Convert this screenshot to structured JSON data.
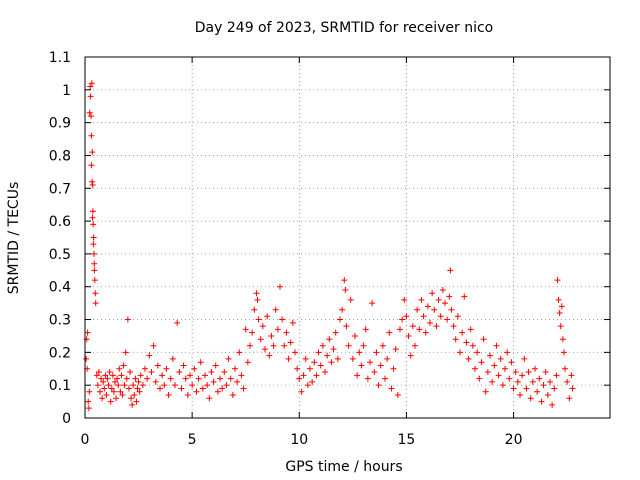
{
  "chart_data": {
    "type": "scatter",
    "title": "Day 249 of 2023, SRMTID for receiver nico",
    "xlabel": "GPS time / hours",
    "ylabel": "SRMTID / TECUs",
    "xlim": [
      0,
      24.5
    ],
    "ylim": [
      0,
      1.1
    ],
    "xticks": [
      0,
      5,
      10,
      15,
      20
    ],
    "xtick_labels": [
      "0",
      "5",
      "10",
      "15",
      "20"
    ],
    "yticks": [
      0,
      0.1,
      0.2,
      0.3,
      0.4,
      0.5,
      0.6,
      0.7,
      0.8,
      0.9,
      1,
      1.1
    ],
    "ytick_labels": [
      "0",
      "0.1",
      "0.2",
      "0.3",
      "0.4",
      "0.5",
      "0.6",
      "0.7",
      "0.8",
      "0.9",
      "1",
      "1.1"
    ],
    "grid": true,
    "marker": "+",
    "color": "#ff0000",
    "series": [
      {
        "name": "SRMTID",
        "points": [
          [
            0.05,
            0.18
          ],
          [
            0.08,
            0.24
          ],
          [
            0.1,
            0.15
          ],
          [
            0.12,
            0.26
          ],
          [
            0.15,
            0.05
          ],
          [
            0.18,
            0.03
          ],
          [
            0.2,
            0.08
          ],
          [
            0.22,
            0.93
          ],
          [
            0.24,
            1.01
          ],
          [
            0.26,
            0.98
          ],
          [
            0.28,
            0.92
          ],
          [
            0.3,
            0.86
          ],
          [
            0.32,
            1.02
          ],
          [
            0.34,
            0.81
          ],
          [
            0.36,
            0.71
          ],
          [
            0.37,
            0.63
          ],
          [
            0.38,
            0.59
          ],
          [
            0.4,
            0.55
          ],
          [
            0.42,
            0.5
          ],
          [
            0.44,
            0.45
          ],
          [
            0.46,
            0.42
          ],
          [
            0.48,
            0.38
          ],
          [
            0.5,
            0.35
          ],
          [
            0.3,
            0.77
          ],
          [
            0.33,
            0.72
          ],
          [
            0.35,
            0.61
          ],
          [
            0.39,
            0.53
          ],
          [
            0.43,
            0.47
          ],
          [
            0.55,
            0.13
          ],
          [
            0.6,
            0.1
          ],
          [
            0.65,
            0.14
          ],
          [
            0.7,
            0.08
          ],
          [
            0.75,
            0.12
          ],
          [
            0.8,
            0.06
          ],
          [
            0.85,
            0.11
          ],
          [
            0.9,
            0.09
          ],
          [
            0.95,
            0.13
          ],
          [
            1.0,
            0.07
          ],
          [
            1.05,
            0.12
          ],
          [
            1.1,
            0.1
          ],
          [
            1.15,
            0.14
          ],
          [
            1.2,
            0.05
          ],
          [
            1.25,
            0.09
          ],
          [
            1.3,
            0.13
          ],
          [
            1.35,
            0.08
          ],
          [
            1.4,
            0.11
          ],
          [
            1.45,
            0.06
          ],
          [
            1.5,
            0.12
          ],
          [
            1.55,
            0.1
          ],
          [
            1.6,
            0.15
          ],
          [
            1.65,
            0.08
          ],
          [
            1.7,
            0.13
          ],
          [
            1.75,
            0.07
          ],
          [
            1.8,
            0.16
          ],
          [
            1.85,
            0.1
          ],
          [
            1.9,
            0.2
          ],
          [
            1.95,
            0.12
          ],
          [
            2.0,
            0.3
          ],
          [
            2.05,
            0.09
          ],
          [
            2.1,
            0.14
          ],
          [
            2.15,
            0.06
          ],
          [
            2.2,
            0.04
          ],
          [
            2.25,
            0.1
          ],
          [
            2.3,
            0.07
          ],
          [
            2.35,
            0.12
          ],
          [
            2.4,
            0.05
          ],
          [
            2.45,
            0.09
          ],
          [
            2.5,
            0.11
          ],
          [
            2.55,
            0.08
          ],
          [
            2.6,
            0.13
          ],
          [
            2.7,
            0.1
          ],
          [
            2.8,
            0.15
          ],
          [
            2.9,
            0.12
          ],
          [
            3.0,
            0.19
          ],
          [
            3.1,
            0.14
          ],
          [
            3.2,
            0.22
          ],
          [
            3.3,
            0.11
          ],
          [
            3.4,
            0.16
          ],
          [
            3.5,
            0.09
          ],
          [
            3.6,
            0.13
          ],
          [
            3.7,
            0.1
          ],
          [
            3.8,
            0.15
          ],
          [
            3.9,
            0.07
          ],
          [
            4.0,
            0.12
          ],
          [
            4.1,
            0.18
          ],
          [
            4.2,
            0.1
          ],
          [
            4.3,
            0.29
          ],
          [
            4.4,
            0.14
          ],
          [
            4.5,
            0.09
          ],
          [
            4.6,
            0.16
          ],
          [
            4.7,
            0.12
          ],
          [
            4.8,
            0.07
          ],
          [
            4.9,
            0.13
          ],
          [
            5.0,
            0.1
          ],
          [
            5.1,
            0.15
          ],
          [
            5.2,
            0.08
          ],
          [
            5.3,
            0.12
          ],
          [
            5.4,
            0.17
          ],
          [
            5.5,
            0.09
          ],
          [
            5.6,
            0.13
          ],
          [
            5.7,
            0.1
          ],
          [
            5.8,
            0.06
          ],
          [
            5.9,
            0.14
          ],
          [
            6.0,
            0.11
          ],
          [
            6.1,
            0.16
          ],
          [
            6.2,
            0.08
          ],
          [
            6.3,
            0.12
          ],
          [
            6.4,
            0.09
          ],
          [
            6.5,
            0.14
          ],
          [
            6.6,
            0.1
          ],
          [
            6.7,
            0.18
          ],
          [
            6.8,
            0.12
          ],
          [
            6.9,
            0.07
          ],
          [
            7.0,
            0.15
          ],
          [
            7.1,
            0.11
          ],
          [
            7.2,
            0.2
          ],
          [
            7.3,
            0.13
          ],
          [
            7.4,
            0.09
          ],
          [
            7.5,
            0.27
          ],
          [
            7.6,
            0.17
          ],
          [
            7.7,
            0.22
          ],
          [
            7.8,
            0.26
          ],
          [
            7.9,
            0.33
          ],
          [
            8.0,
            0.38
          ],
          [
            8.05,
            0.36
          ],
          [
            8.1,
            0.3
          ],
          [
            8.2,
            0.24
          ],
          [
            8.3,
            0.28
          ],
          [
            8.4,
            0.21
          ],
          [
            8.5,
            0.31
          ],
          [
            8.6,
            0.19
          ],
          [
            8.7,
            0.25
          ],
          [
            8.8,
            0.22
          ],
          [
            8.9,
            0.33
          ],
          [
            9.0,
            0.27
          ],
          [
            9.1,
            0.4
          ],
          [
            9.2,
            0.3
          ],
          [
            9.3,
            0.22
          ],
          [
            9.4,
            0.26
          ],
          [
            9.5,
            0.18
          ],
          [
            9.6,
            0.23
          ],
          [
            9.7,
            0.29
          ],
          [
            9.8,
            0.2
          ],
          [
            9.9,
            0.15
          ],
          [
            10.0,
            0.12
          ],
          [
            10.1,
            0.08
          ],
          [
            10.2,
            0.13
          ],
          [
            10.3,
            0.18
          ],
          [
            10.4,
            0.1
          ],
          [
            10.5,
            0.15
          ],
          [
            10.6,
            0.11
          ],
          [
            10.7,
            0.17
          ],
          [
            10.8,
            0.13
          ],
          [
            10.9,
            0.2
          ],
          [
            11.0,
            0.16
          ],
          [
            11.1,
            0.22
          ],
          [
            11.2,
            0.14
          ],
          [
            11.3,
            0.19
          ],
          [
            11.4,
            0.24
          ],
          [
            11.5,
            0.17
          ],
          [
            11.6,
            0.21
          ],
          [
            11.7,
            0.26
          ],
          [
            11.8,
            0.18
          ],
          [
            11.9,
            0.3
          ],
          [
            12.0,
            0.33
          ],
          [
            12.1,
            0.42
          ],
          [
            12.15,
            0.39
          ],
          [
            12.2,
            0.28
          ],
          [
            12.3,
            0.22
          ],
          [
            12.4,
            0.36
          ],
          [
            12.5,
            0.18
          ],
          [
            12.6,
            0.25
          ],
          [
            12.7,
            0.13
          ],
          [
            12.8,
            0.2
          ],
          [
            12.9,
            0.16
          ],
          [
            13.0,
            0.22
          ],
          [
            13.1,
            0.27
          ],
          [
            13.2,
            0.12
          ],
          [
            13.3,
            0.17
          ],
          [
            13.4,
            0.35
          ],
          [
            13.5,
            0.14
          ],
          [
            13.6,
            0.2
          ],
          [
            13.7,
            0.1
          ],
          [
            13.8,
            0.16
          ],
          [
            13.9,
            0.22
          ],
          [
            14.0,
            0.12
          ],
          [
            14.1,
            0.18
          ],
          [
            14.2,
            0.26
          ],
          [
            14.3,
            0.09
          ],
          [
            14.4,
            0.15
          ],
          [
            14.5,
            0.21
          ],
          [
            14.6,
            0.07
          ],
          [
            14.7,
            0.27
          ],
          [
            14.8,
            0.3
          ],
          [
            14.9,
            0.36
          ],
          [
            15.0,
            0.31
          ],
          [
            15.1,
            0.25
          ],
          [
            15.2,
            0.19
          ],
          [
            15.3,
            0.28
          ],
          [
            15.4,
            0.22
          ],
          [
            15.5,
            0.33
          ],
          [
            15.6,
            0.27
          ],
          [
            15.7,
            0.36
          ],
          [
            15.8,
            0.31
          ],
          [
            15.9,
            0.26
          ],
          [
            16.0,
            0.34
          ],
          [
            16.1,
            0.29
          ],
          [
            16.2,
            0.38
          ],
          [
            16.3,
            0.33
          ],
          [
            16.4,
            0.28
          ],
          [
            16.5,
            0.36
          ],
          [
            16.6,
            0.31
          ],
          [
            16.7,
            0.39
          ],
          [
            16.8,
            0.35
          ],
          [
            16.9,
            0.3
          ],
          [
            17.0,
            0.37
          ],
          [
            17.05,
            0.45
          ],
          [
            17.1,
            0.33
          ],
          [
            17.2,
            0.28
          ],
          [
            17.3,
            0.24
          ],
          [
            17.4,
            0.31
          ],
          [
            17.5,
            0.2
          ],
          [
            17.6,
            0.26
          ],
          [
            17.7,
            0.37
          ],
          [
            17.8,
            0.23
          ],
          [
            17.9,
            0.18
          ],
          [
            18.0,
            0.27
          ],
          [
            18.1,
            0.22
          ],
          [
            18.2,
            0.15
          ],
          [
            18.3,
            0.2
          ],
          [
            18.4,
            0.12
          ],
          [
            18.5,
            0.17
          ],
          [
            18.6,
            0.24
          ],
          [
            18.7,
            0.08
          ],
          [
            18.8,
            0.14
          ],
          [
            18.9,
            0.19
          ],
          [
            19.0,
            0.11
          ],
          [
            19.1,
            0.16
          ],
          [
            19.2,
            0.22
          ],
          [
            19.3,
            0.13
          ],
          [
            19.4,
            0.18
          ],
          [
            19.5,
            0.1
          ],
          [
            19.6,
            0.15
          ],
          [
            19.7,
            0.2
          ],
          [
            19.8,
            0.12
          ],
          [
            19.9,
            0.17
          ],
          [
            20.0,
            0.09
          ],
          [
            20.1,
            0.14
          ],
          [
            20.2,
            0.11
          ],
          [
            20.3,
            0.07
          ],
          [
            20.4,
            0.13
          ],
          [
            20.5,
            0.18
          ],
          [
            20.6,
            0.09
          ],
          [
            20.7,
            0.14
          ],
          [
            20.8,
            0.06
          ],
          [
            20.9,
            0.11
          ],
          [
            21.0,
            0.15
          ],
          [
            21.1,
            0.08
          ],
          [
            21.2,
            0.12
          ],
          [
            21.3,
            0.05
          ],
          [
            21.4,
            0.1
          ],
          [
            21.5,
            0.14
          ],
          [
            21.6,
            0.07
          ],
          [
            21.7,
            0.11
          ],
          [
            21.8,
            0.04
          ],
          [
            21.9,
            0.09
          ],
          [
            22.0,
            0.13
          ],
          [
            22.05,
            0.42
          ],
          [
            22.1,
            0.36
          ],
          [
            22.15,
            0.32
          ],
          [
            22.2,
            0.28
          ],
          [
            22.25,
            0.34
          ],
          [
            22.3,
            0.24
          ],
          [
            22.35,
            0.2
          ],
          [
            22.4,
            0.15
          ],
          [
            22.5,
            0.11
          ],
          [
            22.6,
            0.06
          ],
          [
            22.7,
            0.13
          ],
          [
            22.75,
            0.09
          ]
        ]
      }
    ]
  }
}
